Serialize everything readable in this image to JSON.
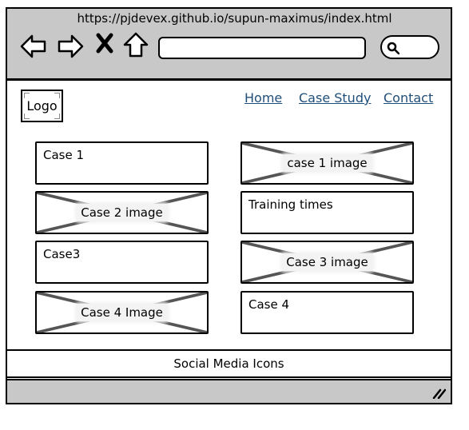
{
  "browser": {
    "url": "https://pjdevex.github.io/supun-maximus/index.html",
    "address_value": "",
    "search_value": ""
  },
  "header": {
    "logo": "Logo",
    "nav": [
      "Home",
      "Case Study",
      "Contact"
    ]
  },
  "cards": {
    "left": [
      {
        "label": "Case 1",
        "image": false
      },
      {
        "label": "Case 2 image",
        "image": true
      },
      {
        "label": "Case3",
        "image": false
      },
      {
        "label": "Case 4 Image",
        "image": true
      }
    ],
    "right": [
      {
        "label": "case 1 image",
        "image": true
      },
      {
        "label": "Training times",
        "image": false
      },
      {
        "label": "Case 3 image",
        "image": true
      },
      {
        "label": "Case 4",
        "image": false
      }
    ]
  },
  "footer": {
    "text": "Social Media Icons"
  },
  "colors": {
    "chrome": "#c8c8c8",
    "link": "#1f4e79",
    "placeholder_line": "#555555"
  }
}
